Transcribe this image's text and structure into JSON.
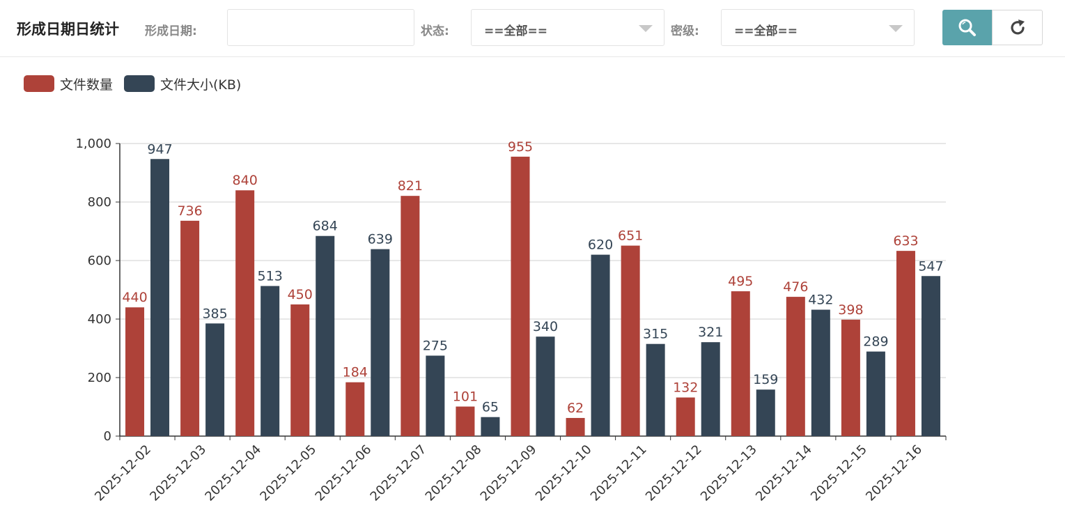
{
  "header": {
    "title": "形成日期日统计",
    "date_label": "形成日期:",
    "date_value": "",
    "status_label": "状态:",
    "status_value": "==全部==",
    "level_label": "密级:",
    "level_value": "==全部==",
    "search_icon": "search-icon",
    "reset_icon": "refresh-icon"
  },
  "colors": {
    "series_count": "#ae4239",
    "series_size": "#344555",
    "accent": "#5aa3ab"
  },
  "chart_data": {
    "type": "bar",
    "categories": [
      "2025-12-02",
      "2025-12-03",
      "2025-12-04",
      "2025-12-05",
      "2025-12-06",
      "2025-12-07",
      "2025-12-08",
      "2025-12-09",
      "2025-12-10",
      "2025-12-11",
      "2025-12-12",
      "2025-12-13",
      "2025-12-14",
      "2025-12-15",
      "2025-12-16"
    ],
    "series": [
      {
        "name": "文件数量",
        "values": [
          440,
          736,
          840,
          450,
          184,
          821,
          101,
          955,
          62,
          651,
          132,
          495,
          476,
          398,
          633
        ]
      },
      {
        "name": "文件大小(KB)",
        "values": [
          947,
          385,
          513,
          684,
          639,
          275,
          65,
          340,
          620,
          315,
          321,
          159,
          432,
          289,
          547
        ]
      }
    ],
    "ylim": [
      0,
      1000
    ],
    "yticks": [
      "0",
      "200",
      "400",
      "600",
      "800",
      "1,000"
    ],
    "grid": true,
    "legend_position": "top-left",
    "xlabel": "",
    "ylabel": ""
  }
}
